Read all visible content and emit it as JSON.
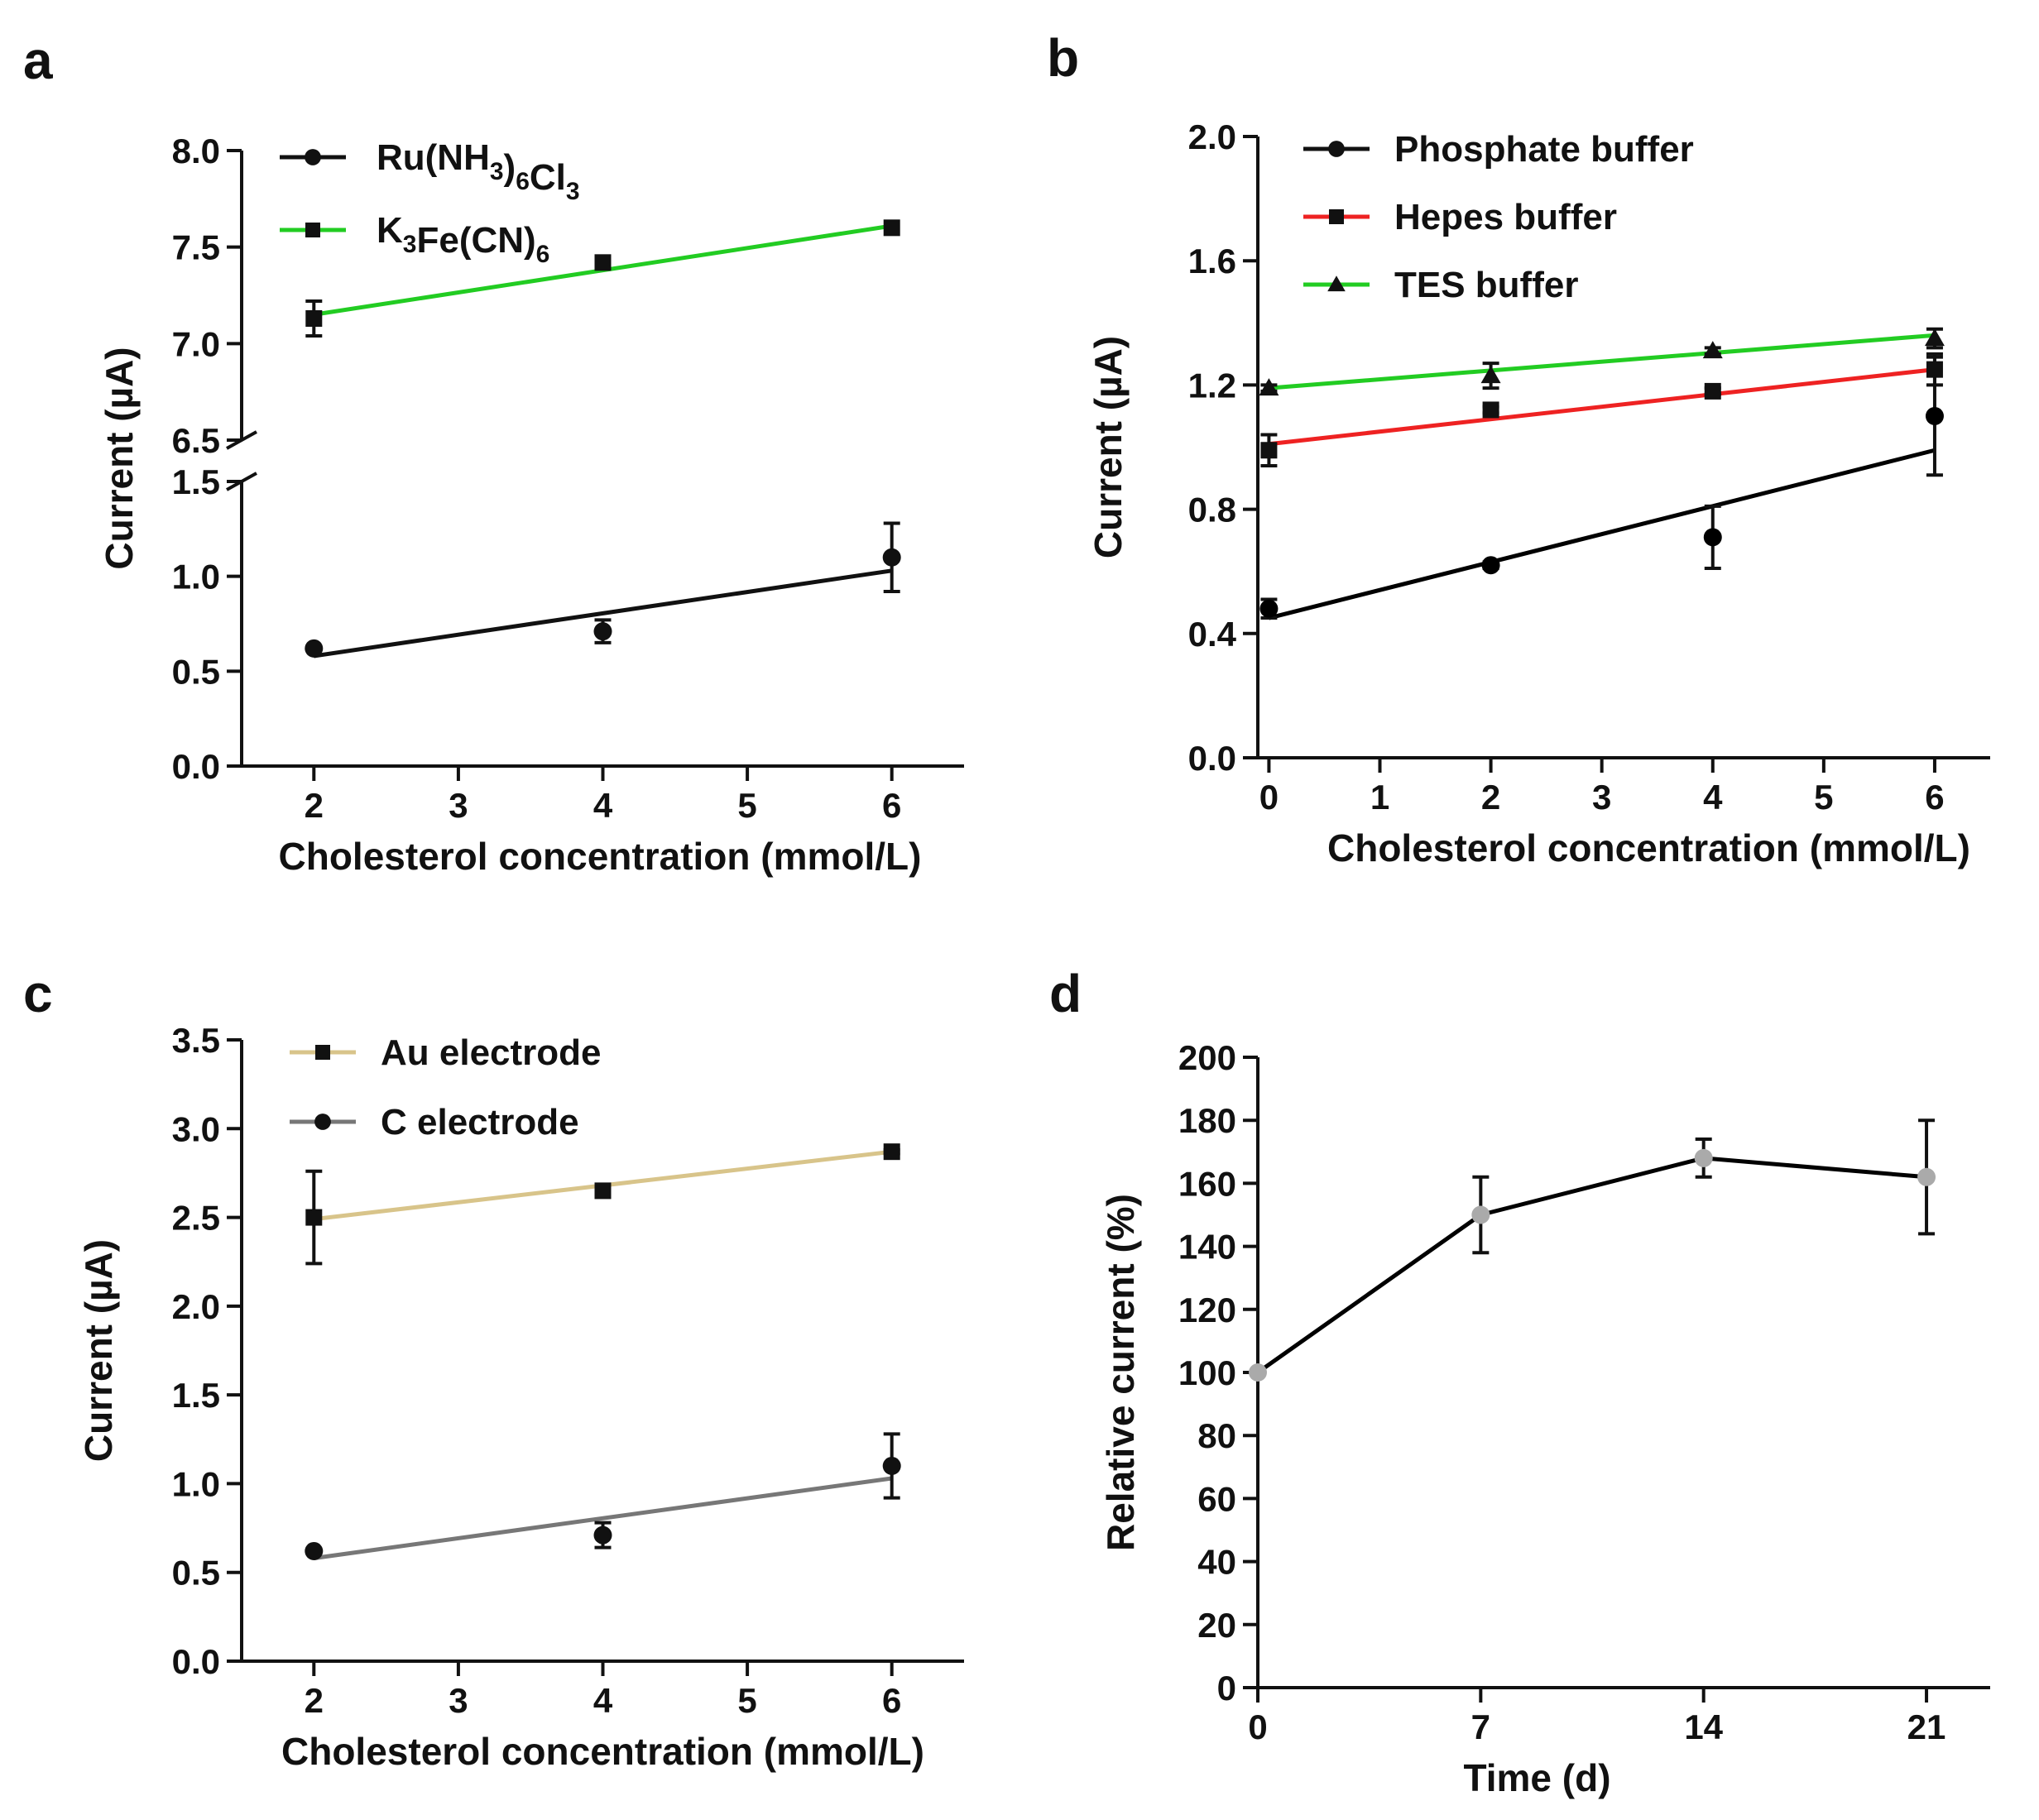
{
  "chart_data": [
    {
      "panel": "a",
      "type": "line",
      "xlabel": "Cholesterol concentration (mmol/L)",
      "ylabel": "Current (µA)",
      "xlim": [
        1.5,
        6.5
      ],
      "x_ticks": [
        "2",
        "3",
        "4",
        "5",
        "6"
      ],
      "y_ticks_upper": [
        "6.5",
        "7.0",
        "7.5",
        "8.0"
      ],
      "y_ticks_lower": [
        "0.0",
        "0.5",
        "1.0",
        "1.5"
      ],
      "ylim_upper": [
        6.5,
        8.0
      ],
      "ylim_lower": [
        0.0,
        1.5
      ],
      "broken_axis": true,
      "legend_position": "top-left",
      "series": [
        {
          "name": "Ru(NH3)6Cl3",
          "label_main": [
            "Ru(NH",
            ")",
            "Cl"
          ],
          "label_sub": [
            "3",
            "6",
            "3"
          ],
          "marker": "circle",
          "color": "#000000",
          "x": [
            2,
            4,
            6
          ],
          "y": [
            0.62,
            0.71,
            1.1
          ],
          "err": [
            0.01,
            0.06,
            0.18
          ],
          "fit": [
            [
              2,
              0.58
            ],
            [
              6,
              1.03
            ]
          ],
          "segment": "lower"
        },
        {
          "name": "K3Fe(CN)6",
          "label_main": [
            "K",
            "Fe(CN)",
            ""
          ],
          "label_sub": [
            "3",
            "6",
            ""
          ],
          "marker": "square",
          "color": "#22cc22",
          "x": [
            2,
            4,
            6
          ],
          "y": [
            7.13,
            7.42,
            7.6
          ],
          "err": [
            0.09,
            0.01,
            0.01
          ],
          "fit": [
            [
              2,
              7.15
            ],
            [
              6,
              7.61
            ]
          ],
          "segment": "upper"
        }
      ]
    },
    {
      "panel": "b",
      "type": "line",
      "xlabel": "Cholesterol concentration (mmol/L)",
      "ylabel": "Current (µA)",
      "xlim": [
        -0.1,
        6.5
      ],
      "ylim": [
        0.0,
        2.0
      ],
      "x_ticks": [
        "0",
        "1",
        "2",
        "3",
        "4",
        "5",
        "6"
      ],
      "y_ticks": [
        "0.0",
        "0.4",
        "0.8",
        "1.2",
        "1.6",
        "2.0"
      ],
      "legend_position": "top-left",
      "series": [
        {
          "name": "Phosphate buffer",
          "marker": "circle",
          "color": "#000000",
          "x": [
            0,
            2,
            4,
            6
          ],
          "y": [
            0.48,
            0.62,
            0.71,
            1.1
          ],
          "err": [
            0.03,
            0.01,
            0.1,
            0.19
          ],
          "fit": [
            [
              0,
              0.45
            ],
            [
              6,
              0.99
            ]
          ]
        },
        {
          "name": "Hepes buffer",
          "marker": "square",
          "color": "#ee2222",
          "x": [
            0,
            2,
            4,
            6
          ],
          "y": [
            0.99,
            1.12,
            1.18,
            1.25
          ],
          "err": [
            0.05,
            0.01,
            0.01,
            0.05
          ],
          "fit": [
            [
              0,
              1.01
            ],
            [
              6,
              1.25
            ]
          ]
        },
        {
          "name": "TES buffer",
          "marker": "triangle",
          "color": "#22cc22",
          "x": [
            0,
            2,
            4,
            6
          ],
          "y": [
            1.19,
            1.23,
            1.31,
            1.35
          ],
          "err": [
            0.01,
            0.04,
            0.01,
            0.03
          ],
          "fit": [
            [
              0,
              1.19
            ],
            [
              6,
              1.36
            ]
          ]
        }
      ]
    },
    {
      "panel": "c",
      "type": "line",
      "xlabel": "Cholesterol concentration (mmol/L)",
      "ylabel": "Current (µA)",
      "xlim": [
        1.5,
        6.5
      ],
      "ylim": [
        0.0,
        3.5
      ],
      "x_ticks": [
        "2",
        "3",
        "4",
        "5",
        "6"
      ],
      "y_ticks": [
        "0.0",
        "0.5",
        "1.0",
        "1.5",
        "2.0",
        "2.5",
        "3.0",
        "3.5"
      ],
      "legend_position": "top-left",
      "series": [
        {
          "name": "Au electrode",
          "marker": "square",
          "color": "#d8c48a",
          "x": [
            2,
            4,
            6
          ],
          "y": [
            2.5,
            2.65,
            2.87
          ],
          "err": [
            0.26,
            0.01,
            0.01
          ],
          "fit": [
            [
              2,
              2.49
            ],
            [
              6,
              2.87
            ]
          ]
        },
        {
          "name": "C electrode",
          "marker": "circle",
          "color": "#777777",
          "x": [
            2,
            4,
            6
          ],
          "y": [
            0.62,
            0.71,
            1.1
          ],
          "err": [
            0.01,
            0.07,
            0.18
          ],
          "fit": [
            [
              2,
              0.58
            ],
            [
              6,
              1.03
            ]
          ]
        }
      ]
    },
    {
      "panel": "d",
      "type": "line",
      "xlabel": "Time (d)",
      "ylabel": "Relative current (%)",
      "xlim": [
        0,
        23
      ],
      "ylim": [
        0,
        200
      ],
      "x_ticks": [
        "0",
        "7",
        "14",
        "21"
      ],
      "y_ticks": [
        "0",
        "20",
        "40",
        "60",
        "80",
        "100",
        "120",
        "140",
        "160",
        "180",
        "200"
      ],
      "series": [
        {
          "name": "Relative current",
          "marker": "circle",
          "color": "#000000",
          "marker_color": "#aaaaaa",
          "x": [
            0,
            7,
            14,
            21
          ],
          "y": [
            100,
            150,
            168,
            162
          ],
          "err": [
            0,
            12,
            6,
            18
          ]
        }
      ]
    }
  ]
}
